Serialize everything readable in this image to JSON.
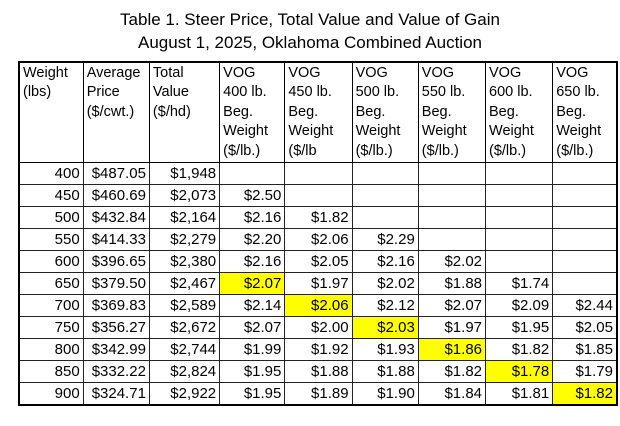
{
  "title": {
    "line1": "Table 1. Steer Price, Total Value and Value of Gain",
    "line2": "August 1, 2025, Oklahoma Combined Auction"
  },
  "table": {
    "highlight_color": "#ffff00",
    "header": [
      "Weight\n(lbs)",
      "Average\nPrice\n($/cwt.)",
      "Total\nValue\n($/hd)",
      "VOG\n400 lb.\nBeg.\nWeight\n($/lb.)",
      "VOG\n450 lb.\nBeg.\nWeight\n($/lb",
      "VOG\n500 lb.\nBeg.\nWeight\n($/lb.)",
      "VOG\n550 lb.\nBeg.\nWeight\n($/lb.)",
      "VOG\n600 lb.\nBeg.\nWeight\n($/lb.)",
      "VOG\n650 lb.\nBeg.\nWeight\n($/lb.)"
    ],
    "rows": [
      {
        "cells": [
          "400",
          "$487.05",
          "$1,948",
          "",
          "",
          "",
          "",
          "",
          ""
        ],
        "highlight": -1
      },
      {
        "cells": [
          "450",
          "$460.69",
          "$2,073",
          "$2.50",
          "",
          "",
          "",
          "",
          ""
        ],
        "highlight": -1
      },
      {
        "cells": [
          "500",
          "$432.84",
          "$2,164",
          "$2.16",
          "$1.82",
          "",
          "",
          "",
          ""
        ],
        "highlight": -1
      },
      {
        "cells": [
          "550",
          "$414.33",
          "$2,279",
          "$2.20",
          "$2.06",
          "$2.29",
          "",
          "",
          ""
        ],
        "highlight": -1
      },
      {
        "cells": [
          "600",
          "$396.65",
          "$2,380",
          "$2.16",
          "$2.05",
          "$2.16",
          "$2.02",
          "",
          ""
        ],
        "highlight": -1
      },
      {
        "cells": [
          "650",
          "$379.50",
          "$2,467",
          "$2.07",
          "$1.97",
          "$2.02",
          "$1.88",
          "$1.74",
          ""
        ],
        "highlight": 3
      },
      {
        "cells": [
          "700",
          "$369.83",
          "$2,589",
          "$2.14",
          "$2.06",
          "$2.12",
          "$2.07",
          "$2.09",
          "$2.44"
        ],
        "highlight": 4
      },
      {
        "cells": [
          "750",
          "$356.27",
          "$2,672",
          "$2.07",
          "$2.00",
          "$2.03",
          "$1.97",
          "$1.95",
          "$2.05"
        ],
        "highlight": 5
      },
      {
        "cells": [
          "800",
          "$342.99",
          "$2,744",
          "$1.99",
          "$1.92",
          "$1.93",
          "$1.86",
          "$1.82",
          "$1.85"
        ],
        "highlight": 6
      },
      {
        "cells": [
          "850",
          "$332.22",
          "$2,824",
          "$1.95",
          "$1.88",
          "$1.88",
          "$1.82",
          "$1.78",
          "$1.79"
        ],
        "highlight": 7
      },
      {
        "cells": [
          "900",
          "$324.71",
          "$2,922",
          "$1.95",
          "$1.89",
          "$1.90",
          "$1.84",
          "$1.81",
          "$1.82"
        ],
        "highlight": 8
      }
    ]
  }
}
